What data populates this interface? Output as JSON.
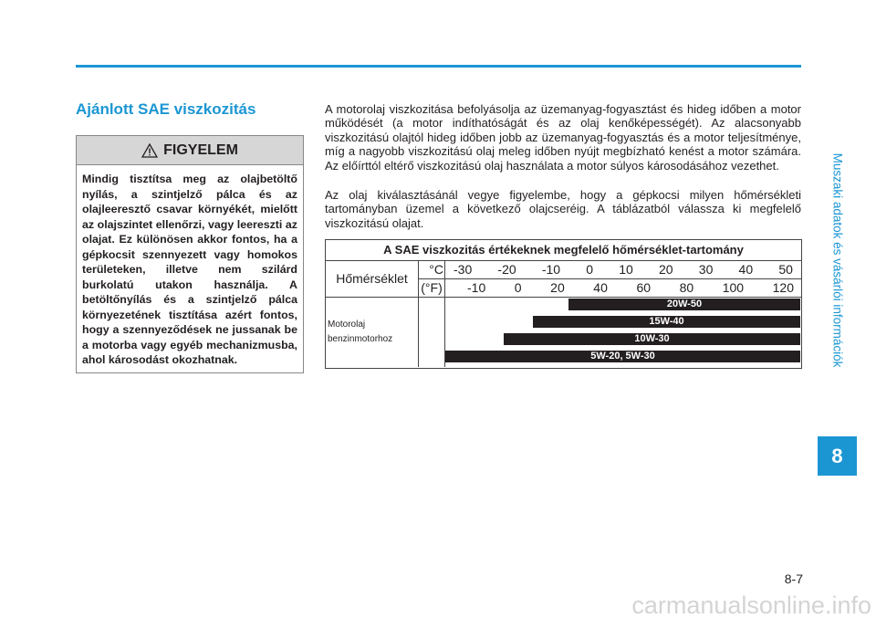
{
  "side_tab": {
    "title": "Muszaki adatok és vásárlói információk",
    "chapter": "8"
  },
  "page_number": "8-7",
  "watermark": "carmanualsonline.info",
  "section": {
    "title": "Ajánlott SAE viszkozitás"
  },
  "warning": {
    "title": "FIGYELEM",
    "text": "Mindig tisztítsa meg az olajbetöltő nyílás, a szintjelző pálca és az olajleeresztő csavar környékét, mielőtt az olajszintet ellenőrzi, vagy leereszti az olajat. Ez különösen akkor fontos, ha a gépkocsit szennyezett vagy homokos területeken, illetve nem szilárd burkolatú utakon használja. A betöltőnyílás és a szintjelző pálca környezetének tisztítása azért fontos, hogy a szennyeződések ne jussanak be a motorba vagy egyéb mechanizmusba, ahol károsodást okozhatnak."
  },
  "paragraphs": [
    "A motorolaj viszkozitása befolyásolja az üzemanyag-fogyasztást és hideg időben a motor működését (a motor indíthatóságát és az olaj kenőképességét). Az alacsonyabb viszkozitású olajtól hideg időben jobb az üzemanyag-fogyasztás és a motor teljesítménye, míg a nagyobb viszkozitású olaj meleg időben nyújt megbízható kenést a motor számára. Az előírttól eltérő viszkozitású olaj használata a motor súlyos károsodásához vezethet.",
    "Az olaj kiválasztásánál vegye figyelembe, hogy a gépkocsi milyen hőmérsékleti tartományban üzemel a következő olajcseréig. A táblázatból válassza ki megfelelő viszkozitású olajat."
  ],
  "table": {
    "title": "A SAE viszkozitás értékeknek megfelelő hőmérséklet-tartomány",
    "row_label": "Hőmérséklet",
    "celsius_unit": "°C",
    "fahrenheit_unit": "(°F)",
    "celsius": [
      -30,
      -20,
      -10,
      0,
      10,
      20,
      30,
      40,
      50
    ],
    "fahrenheit": [
      -10,
      0,
      20,
      40,
      60,
      80,
      100,
      120
    ],
    "oil_label": [
      "Motorolaj",
      "benzinmotorhoz"
    ],
    "grades": [
      "20W-50",
      "15W-40",
      "10W-30",
      "5W-20, 5W-30"
    ]
  }
}
